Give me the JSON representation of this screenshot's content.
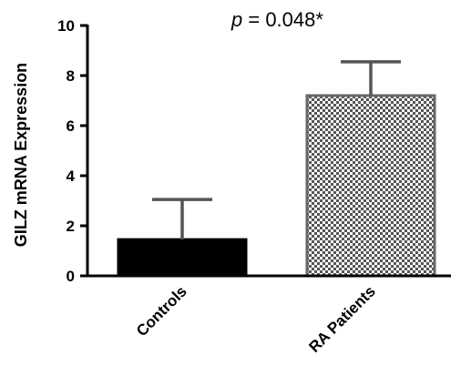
{
  "chart_data": {
    "type": "bar",
    "categories": [
      "Controls",
      "RA Patients"
    ],
    "values": [
      1.45,
      7.2
    ],
    "error_upper": [
      3.05,
      8.55
    ],
    "ylabel": "GILZ mRNA Expression",
    "xlabel": "",
    "ylim": [
      0,
      10
    ],
    "yticks": [
      0,
      2,
      4,
      6,
      8,
      10
    ],
    "annotation": {
      "prefix": "p",
      "text": " = 0.048*"
    },
    "bar_styles": [
      {
        "fill": "#000000",
        "stroke": "#000000",
        "pattern": "solid"
      },
      {
        "fill": "#ffffff",
        "stroke": "#666666",
        "pattern": "checkerboard",
        "pattern_color": "#555555"
      }
    ],
    "axis_color": "#000000",
    "error_color": "#555555",
    "grid": false
  }
}
